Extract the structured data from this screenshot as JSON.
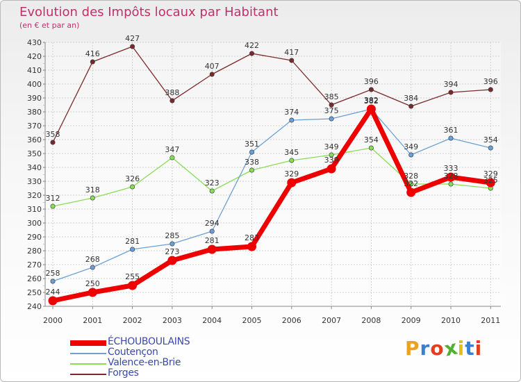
{
  "chart_data": {
    "type": "line",
    "title": "Evolution des Impôts locaux par Habitant",
    "subtitle": "(en € et par an)",
    "xlabel": "",
    "ylabel": "",
    "ylim": [
      240,
      430
    ],
    "ytick_step": 10,
    "grid": true,
    "legend_position": "bottom-left",
    "categories": [
      "2000",
      "2001",
      "2002",
      "2003",
      "2004",
      "2005",
      "2006",
      "2007",
      "2008",
      "2009",
      "2010",
      "2011"
    ],
    "series": [
      {
        "name": "ÉCHOUBOULAINS",
        "color": "#ee0000",
        "values": [
          244,
          250,
          255,
          273,
          281,
          283,
          329,
          339,
          382,
          322,
          333,
          329
        ]
      },
      {
        "name": "Coutençon",
        "color": "#6aa0d4",
        "values": [
          258,
          268,
          281,
          285,
          294,
          351,
          374,
          375,
          382,
          349,
          361,
          354
        ]
      },
      {
        "name": "Valence-en-Brie",
        "color": "#88dd55",
        "values": [
          312,
          318,
          326,
          347,
          323,
          338,
          345,
          349,
          354,
          328,
          328,
          325
        ]
      },
      {
        "name": "Forges",
        "color": "#7a2a2a",
        "values": [
          358,
          416,
          427,
          388,
          407,
          422,
          417,
          385,
          396,
          384,
          394,
          396
        ]
      }
    ]
  },
  "branding": {
    "text": "Proxiti",
    "letters": [
      "P",
      "r",
      "o",
      "x",
      "i",
      "t",
      "i"
    ],
    "colors": [
      "#f0a020",
      "#3a7fd0",
      "#e04020",
      "#50b030",
      "#e0c020",
      "#3a7fd0",
      "#e04020"
    ]
  },
  "colors": {
    "title": "#c0306a",
    "grid": "#cfcfcf",
    "axis": "#888888"
  }
}
